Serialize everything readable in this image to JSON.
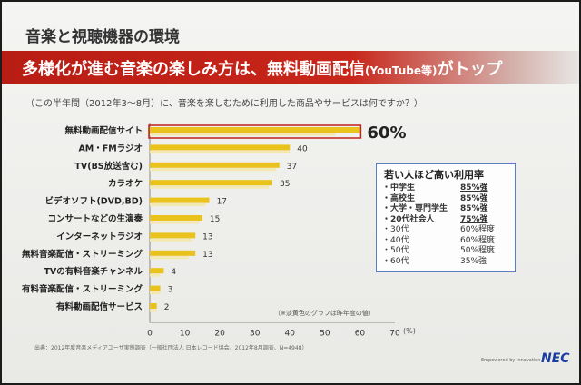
{
  "slide": {
    "title": "音楽と視聴機器の環境",
    "banner_main": "多様化が進む音楽の楽しみ方は、無料動画配信",
    "banner_paren": "(YouTube等)",
    "banner_end": "がトップ",
    "question": "（この半年間（2012年3〜8月）に、音楽を楽しむために利用した商品やサービスは何ですか？）",
    "source": "出典：2012年度音楽メディアユーザ実態調査（一般社団法人 日本レコード協会、2012年8月調査、N=4948）",
    "note": "（※淡黄色のグラフは昨年度の値）",
    "footer_tag": "Empowered by Innovation",
    "logo": "NEC",
    "unit": "(%)",
    "highlight_label": "60%"
  },
  "callout": {
    "title": "若い人ほど高い利用率",
    "rows": [
      {
        "label": "・中学生",
        "value": "85%強"
      },
      {
        "label": "・高校生",
        "value": "85%強"
      },
      {
        "label": "・大学・専門学生",
        "value": "85%強"
      },
      {
        "label": "・20代社会人",
        "value": "75%強"
      },
      {
        "label": "・30代",
        "value": "60%程度"
      },
      {
        "label": "・40代",
        "value": "60%程度"
      },
      {
        "label": "・50代",
        "value": "50%程度"
      },
      {
        "label": "・60代",
        "value": "35%強"
      }
    ]
  },
  "colors": {
    "bar_current": "#e9c21c",
    "bar_previous": "#f3e9b0",
    "banner": "#c0231a",
    "highlight_outline": "#c0231a"
  },
  "chart_data": {
    "type": "bar",
    "orientation": "horizontal",
    "categories": [
      "無料動画配信サイト",
      "AM・FMラジオ",
      "TV(BS放送含む)",
      "カラオケ",
      "ビデオソフト(DVD,BD)",
      "コンサートなどの生演奏",
      "インターネットラジオ",
      "無料音楽配信・ストリーミング",
      "TVの有料音楽チャンネル",
      "有料音楽配信・ストリーミング",
      "有料動画配信サービス"
    ],
    "series": [
      {
        "name": "",
        "values": [
          60,
          40,
          37,
          35,
          17,
          15,
          13,
          13,
          4,
          3,
          2
        ]
      },
      {
        "name": "",
        "values": [
          53,
          40,
          36,
          34,
          16,
          14,
          12,
          11,
          3,
          3,
          2
        ]
      }
    ],
    "data_labels": [
      "60%",
      "40",
      "37",
      "35",
      "17",
      "15",
      "13",
      "13",
      "4",
      "3",
      "2"
    ],
    "xticks": [
      "0",
      "10",
      "20",
      "30",
      "40",
      "50",
      "60",
      "70"
    ],
    "xlim": [
      0,
      70
    ],
    "xlabel": "(%)",
    "grid": false
  }
}
